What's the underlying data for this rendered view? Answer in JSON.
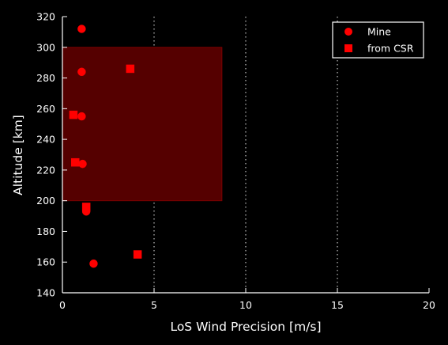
{
  "chart_data": {
    "type": "scatter",
    "title": "",
    "xlabel": "LoS Wind Precision [m/s]",
    "ylabel": "Altitude [km]",
    "xlim": [
      0,
      20
    ],
    "ylim": [
      140,
      320
    ],
    "xticks": [
      0,
      5,
      10,
      15,
      20
    ],
    "yticks": [
      140,
      160,
      180,
      200,
      220,
      240,
      260,
      280,
      300,
      320
    ],
    "grid": "vertical dotted white lines at x ticks",
    "legend_position": "top-right",
    "background": "#000000",
    "foreground": "#ffffff",
    "highlight_region": {
      "x": [
        0,
        8.7
      ],
      "y": [
        200,
        300
      ],
      "color": "#550000",
      "edge_color": "#7a0000"
    },
    "series": [
      {
        "name": "Mine",
        "marker": "circle",
        "color": "#ff0000",
        "points": [
          {
            "x": 1.05,
            "y": 312
          },
          {
            "x": 1.05,
            "y": 284
          },
          {
            "x": 1.05,
            "y": 255
          },
          {
            "x": 1.1,
            "y": 224
          },
          {
            "x": 1.3,
            "y": 193
          },
          {
            "x": 1.7,
            "y": 159
          }
        ]
      },
      {
        "name": "from CSR",
        "marker": "square",
        "color": "#ff0000",
        "points": [
          {
            "x": 3.7,
            "y": 286
          },
          {
            "x": 0.6,
            "y": 256
          },
          {
            "x": 0.7,
            "y": 225
          },
          {
            "x": 1.3,
            "y": 196
          },
          {
            "x": 4.1,
            "y": 165
          }
        ]
      }
    ]
  }
}
